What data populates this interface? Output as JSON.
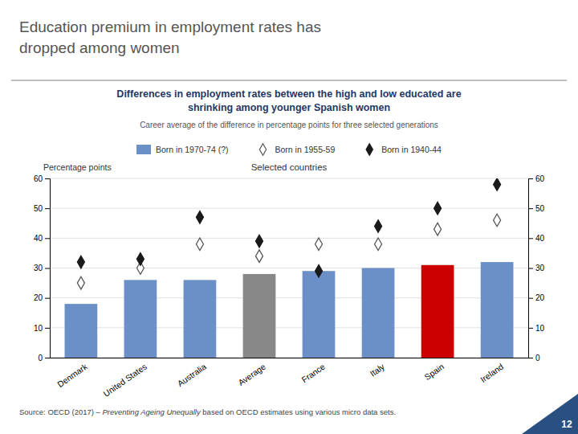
{
  "chart_data": {
    "type": "bar",
    "title": "Education premium in employment rates has\ndropped among women",
    "subtitle": "Differences in employment rates between the high and low educated are\nshrinking among younger Spanish women",
    "ylabel": "Percentage points",
    "categories": [
      "Denmark",
      "United States",
      "Australia",
      "Average",
      "France",
      "Italy",
      "Spain",
      "Ireland"
    ],
    "series": [
      {
        "name": "Born in 1970-74 (?)",
        "type": "bar",
        "colors": [
          "#6b90c7",
          "#6b90c7",
          "#6b90c7",
          "#888888",
          "#6b90c7",
          "#6b90c7",
          "#cc0000",
          "#6b90c7"
        ],
        "values": [
          18,
          26,
          26,
          28,
          29,
          30,
          31,
          32
        ]
      },
      {
        "name": "Born in 1955-59",
        "type": "scatter",
        "marker": "diamond-open",
        "color": "#555555",
        "values": [
          25,
          30,
          38,
          34,
          38,
          38,
          43,
          46
        ]
      },
      {
        "name": "Born in 1940-44",
        "type": "scatter",
        "marker": "diamond",
        "color": "#1a1a1a",
        "values": [
          32,
          33,
          47,
          39,
          29,
          44,
          50,
          58
        ]
      }
    ],
    "ylim": [
      0,
      60
    ],
    "yticks": [
      0,
      10,
      20,
      30,
      40,
      50,
      60
    ],
    "y2lim": [
      0,
      60
    ],
    "y2ticks": [
      0,
      10,
      20,
      30,
      40,
      50,
      60
    ],
    "grid": true,
    "legend": "top",
    "annotations": [
      "Career average of the difference in percentage points for three selected generations",
      "Selected countries",
      "Source: OECD (2017) – ",
      "Preventing Ageing Unequally",
      " based on OECD estimates using various micro data sets.",
      "12"
    ]
  }
}
